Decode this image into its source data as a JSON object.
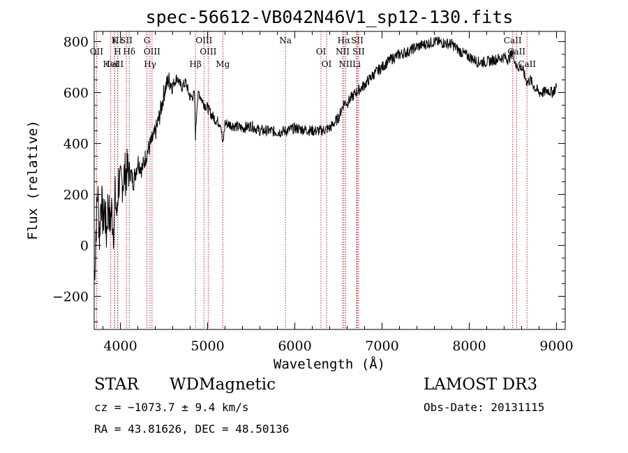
{
  "chart_data": {
    "type": "line",
    "title": "spec-56612-VB042N46V1_sp12-130.fits",
    "xlabel": "Wavelength (Å)",
    "ylabel": "Flux (relative)",
    "xlim": [
      3700,
      9100
    ],
    "ylim": [
      -330,
      840
    ],
    "xticks": [
      4000,
      5000,
      6000,
      7000,
      8000,
      9000
    ],
    "yticks": [
      -200,
      0,
      200,
      400,
      600,
      800
    ],
    "xtick_labels": [
      "4000",
      "5000",
      "6000",
      "7000",
      "8000",
      "9000"
    ],
    "ytick_labels": [
      "−200",
      "0",
      "200",
      "400",
      "600",
      "800"
    ],
    "grid": false,
    "series": [
      {
        "color": "#000000",
        "x": [
          3700,
          3720,
          3740,
          3760,
          3780,
          3800,
          3820,
          3840,
          3860,
          3880,
          3900,
          3920,
          3940,
          3960,
          3980,
          4000,
          4050,
          4100,
          4150,
          4200,
          4250,
          4300,
          4350,
          4400,
          4450,
          4480,
          4500,
          4550,
          4600,
          4650,
          4700,
          4750,
          4800,
          4850,
          4861,
          4880,
          4900,
          4950,
          5000,
          5050,
          5100,
          5150,
          5175,
          5200,
          5300,
          5400,
          5500,
          5600,
          5700,
          5800,
          5900,
          6000,
          6100,
          6200,
          6300,
          6400,
          6500,
          6563,
          6600,
          6700,
          6800,
          6900,
          7000,
          7100,
          7200,
          7300,
          7400,
          7500,
          7600,
          7700,
          7800,
          7900,
          8000,
          8100,
          8200,
          8300,
          8400,
          8450,
          8500,
          8542,
          8600,
          8662,
          8700,
          8750,
          8800,
          8850,
          8900,
          8950,
          9000
        ],
        "y": [
          -150,
          60,
          220,
          30,
          200,
          90,
          150,
          40,
          180,
          80,
          140,
          60,
          190,
          110,
          260,
          230,
          280,
          300,
          250,
          330,
          300,
          360,
          400,
          440,
          510,
          560,
          600,
          650,
          630,
          660,
          620,
          640,
          580,
          590,
          430,
          560,
          600,
          560,
          540,
          510,
          490,
          480,
          390,
          480,
          470,
          460,
          470,
          450,
          450,
          445,
          450,
          460,
          455,
          450,
          450,
          460,
          500,
          560,
          560,
          600,
          630,
          670,
          700,
          730,
          750,
          760,
          780,
          790,
          800,
          795,
          790,
          760,
          740,
          720,
          720,
          730,
          740,
          730,
          760,
          700,
          700,
          640,
          650,
          620,
          600,
          600,
          610,
          600,
          620
        ]
      }
    ],
    "lines": [
      {
        "name": "Hε",
        "wl": 3970
      },
      {
        "name": "OII",
        "wl": 3727
      },
      {
        "name": "CaII",
        "wl": 3934
      },
      {
        "name": "K",
        "wl": 3934
      },
      {
        "name": "H",
        "wl": 3969
      },
      {
        "name": "HeI",
        "wl": 3889
      },
      {
        "name": "SII",
        "wl": 4069
      },
      {
        "name": "Hδ",
        "wl": 4102
      },
      {
        "name": "Hγ",
        "wl": 4340
      },
      {
        "name": "G",
        "wl": 4305
      },
      {
        "name": "OIII",
        "wl": 4363
      },
      {
        "name": "Hβ",
        "wl": 4861
      },
      {
        "name": "OIII",
        "wl": 4959
      },
      {
        "name": "OIII",
        "wl": 5007
      },
      {
        "name": "Mg",
        "wl": 5175
      },
      {
        "name": "Na",
        "wl": 5893
      },
      {
        "name": "OI",
        "wl": 6300
      },
      {
        "name": "OI",
        "wl": 6364
      },
      {
        "name": "Hα",
        "wl": 6563
      },
      {
        "name": "NII",
        "wl": 6548
      },
      {
        "name": "NII",
        "wl": 6583
      },
      {
        "name": "SII",
        "wl": 6716
      },
      {
        "name": "SII",
        "wl": 6731
      },
      {
        "name": "Li",
        "wl": 6708
      },
      {
        "name": "CaII",
        "wl": 8498
      },
      {
        "name": "CaII",
        "wl": 8542
      },
      {
        "name": "CaII",
        "wl": 8662
      }
    ]
  },
  "info": {
    "class": "STAR",
    "subclass": "WDMagnetic",
    "survey": "LAMOST DR3",
    "cz": "cz = −1073.7 ± 9.4 km/s",
    "obs_date": "Obs-Date: 20131115",
    "radec": "RA =  43.81626, DEC =  48.50136"
  }
}
